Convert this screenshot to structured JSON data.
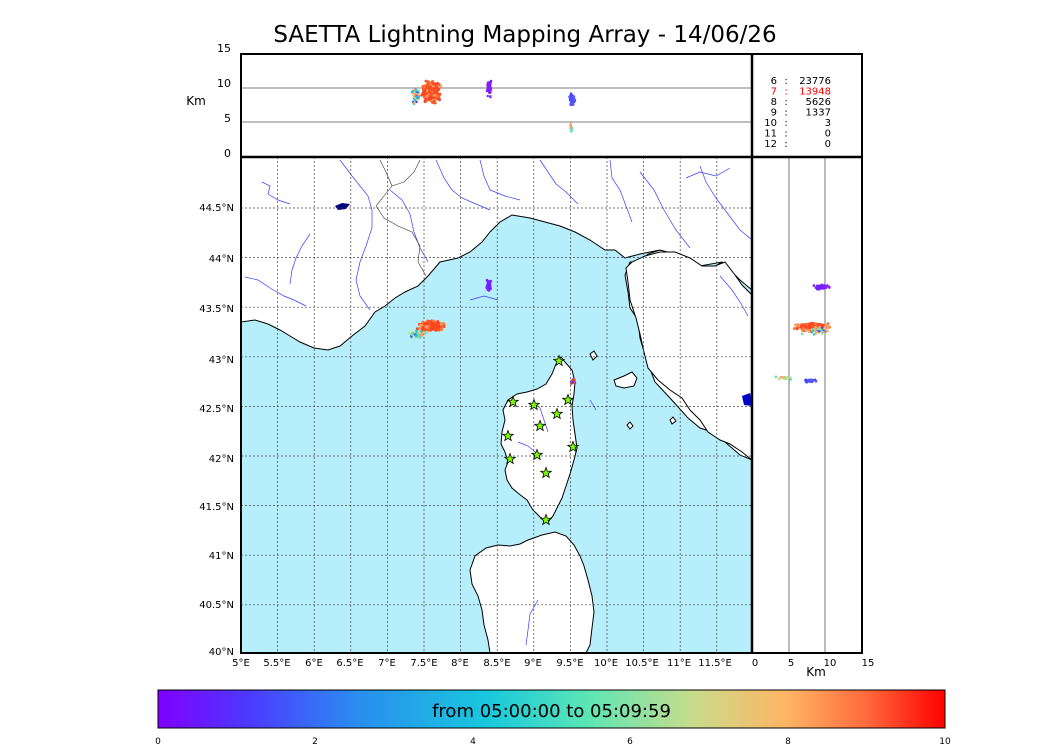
{
  "title": "SAETTA Lightning Mapping Array - 14/06/26",
  "colors": {
    "sea": "#b7eefb",
    "land": "#ffffff",
    "river": "#3a3aff",
    "strike_main": "#ff4520",
    "strike_purple": "#8a1cff",
    "strike_blue": "#4848ff",
    "station_star": "#7cfc00"
  },
  "top_panel": {
    "ylabel": "Km",
    "yticks": [
      "15",
      "10",
      "5",
      "0"
    ],
    "station_counts": [
      {
        "stations": "6",
        "sep": ":",
        "count": "23776",
        "highlight": false
      },
      {
        "stations": "7",
        "sep": ":",
        "count": "13948",
        "highlight": true
      },
      {
        "stations": "8",
        "sep": ":",
        "count": "5626",
        "highlight": false
      },
      {
        "stations": "9",
        "sep": ":",
        "count": "1337",
        "highlight": false
      },
      {
        "stations": "10",
        "sep": ":",
        "count": "3",
        "highlight": false
      },
      {
        "stations": "11",
        "sep": ":",
        "count": "0",
        "highlight": false
      },
      {
        "stations": "12",
        "sep": ":",
        "count": "0",
        "highlight": false
      }
    ]
  },
  "map": {
    "lat_labels": [
      "44.5°N",
      "44°N",
      "43.5°N",
      "43°N",
      "42.5°N",
      "42°N",
      "41.5°N",
      "41°N",
      "40.5°N",
      "40°N"
    ],
    "lon_labels": [
      "5°E",
      "5.5°E",
      "6°E",
      "6.5°E",
      "7°E",
      "7.5°E",
      "8°E",
      "8.5°E",
      "9°E",
      "9.5°E",
      "10°E",
      "10.5°E",
      "11°E",
      "11.5°E"
    ]
  },
  "side_panel": {
    "xlabel": "Km",
    "xticks": [
      "0",
      "5",
      "10",
      "15"
    ]
  },
  "colorbar": {
    "label": "from 05:00:00 to 05:09:59",
    "ticks": [
      "0",
      "2",
      "4",
      "6",
      "8",
      "10"
    ],
    "range": [
      0,
      10
    ]
  }
}
